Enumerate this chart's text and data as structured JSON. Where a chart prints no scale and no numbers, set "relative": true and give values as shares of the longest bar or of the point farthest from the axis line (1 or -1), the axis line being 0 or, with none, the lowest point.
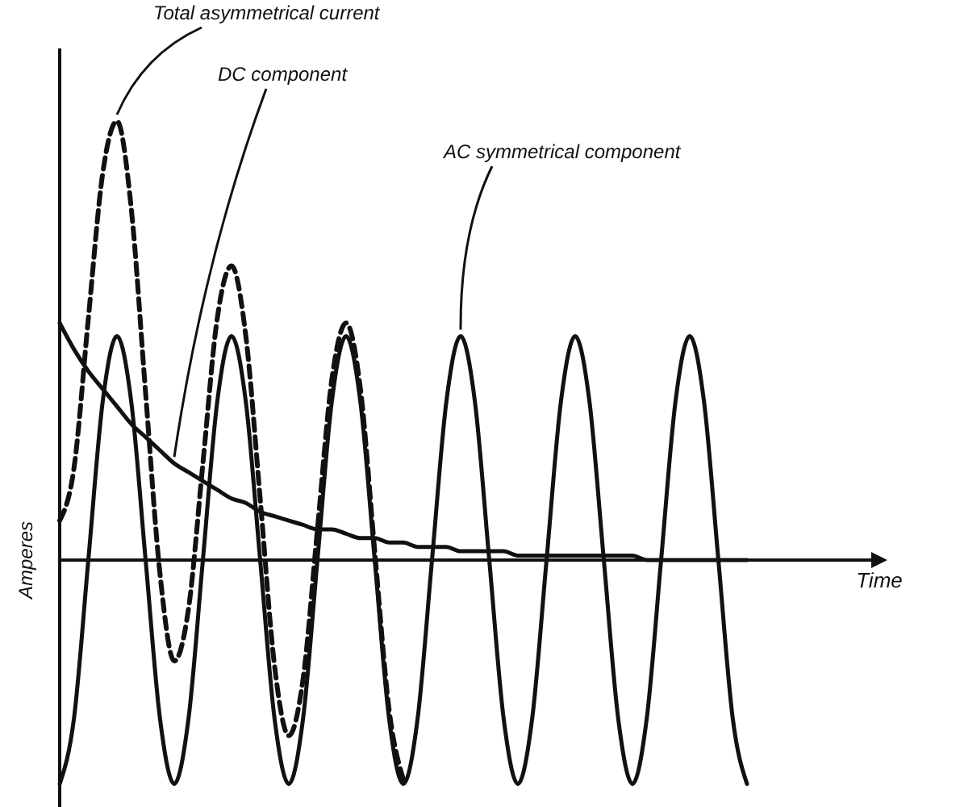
{
  "chart_data": {
    "type": "line",
    "relative": true,
    "xlabel": "Time",
    "ylabel": "Amperes",
    "categories": [
      null,
      null,
      null,
      null,
      null,
      null,
      null,
      null,
      null,
      null,
      null,
      null,
      null,
      null,
      null,
      null,
      null,
      null,
      null,
      null,
      null,
      null,
      null,
      null,
      null,
      null,
      null,
      null,
      null,
      null,
      null,
      null,
      null,
      null,
      null,
      null,
      null,
      null,
      null,
      null,
      null,
      null,
      null,
      null,
      null,
      null,
      null,
      null,
      null
    ],
    "series": [
      {
        "name": "Total asymmetrical current",
        "color": "#111111",
        "line_style": "dashed",
        "values": [
          0.09,
          0.21,
          0.55,
          0.88,
          1.0,
          0.8,
          0.38,
          -0.03,
          -0.23,
          -0.11,
          0.22,
          0.55,
          0.67,
          0.51,
          0.14,
          -0.24,
          -0.4,
          -0.27,
          0.07,
          0.41,
          0.54,
          0.39,
          0.02,
          -0.34,
          -0.5,
          null,
          null,
          null,
          null,
          null,
          null,
          null,
          null,
          null,
          null,
          null,
          null,
          null,
          null,
          null,
          null,
          null,
          null,
          null,
          null,
          null,
          null,
          null,
          null
        ]
      },
      {
        "name": "DC component",
        "color": "#111111",
        "line_style": "solid",
        "values": [
          0.54,
          0.48,
          0.43,
          0.39,
          0.35,
          0.31,
          0.28,
          0.25,
          0.22,
          0.2,
          0.18,
          0.16,
          0.14,
          0.13,
          0.11,
          0.1,
          0.09,
          0.08,
          0.07,
          0.07,
          0.06,
          0.05,
          0.05,
          0.04,
          0.04,
          0.03,
          0.03,
          0.03,
          0.02,
          0.02,
          0.02,
          0.02,
          0.01,
          0.01,
          0.01,
          0.01,
          0.01,
          0.01,
          0.01,
          0.01,
          0.01,
          0,
          0,
          0,
          0,
          0,
          0,
          0,
          0
        ]
      },
      {
        "name": "AC symmetrical component",
        "color": "#111111",
        "line_style": "solid",
        "values": [
          -0.51,
          -0.36,
          0,
          0.36,
          0.51,
          0.36,
          0,
          -0.36,
          -0.51,
          -0.36,
          0,
          0.36,
          0.51,
          0.36,
          0,
          -0.36,
          -0.51,
          -0.36,
          0,
          0.36,
          0.51,
          0.36,
          0,
          -0.36,
          -0.51,
          -0.36,
          0,
          0.36,
          0.51,
          0.36,
          0,
          -0.36,
          -0.51,
          -0.36,
          0,
          0.36,
          0.51,
          0.36,
          0,
          -0.36,
          -0.51,
          -0.36,
          0,
          0.36,
          0.51,
          0.36,
          0,
          -0.36,
          -0.51
        ]
      }
    ]
  }
}
